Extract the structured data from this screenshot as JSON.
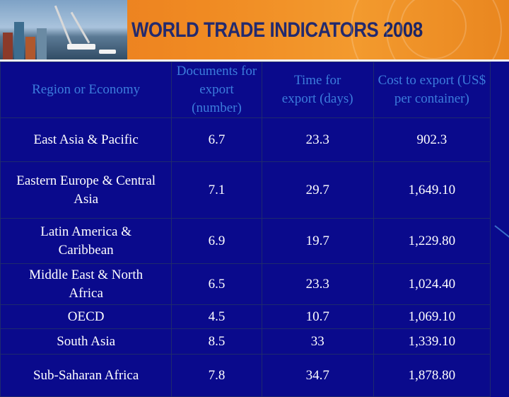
{
  "banner": {
    "title": "WORLD TRADE INDICATORS",
    "year": "2008"
  },
  "colors": {
    "background": "#0a0a8c",
    "banner": "#f08a22",
    "header_text": "#3c7ddc",
    "cell_text": "#ffffff"
  },
  "table": {
    "headers": [
      "Region or Economy",
      "Documents for export (number)",
      "Time for export (days)",
      "Cost to export (US$ per container)"
    ],
    "rows": [
      [
        "East Asia & Pacific",
        "6.7",
        "23.3",
        "902.3"
      ],
      [
        "Eastern Europe & Central Asia",
        "7.1",
        "29.7",
        "1,649.10"
      ],
      [
        "Latin America & Caribbean",
        "6.9",
        "19.7",
        "1,229.80"
      ],
      [
        "Middle East & North Africa",
        "6.5",
        "23.3",
        "1,024.40"
      ],
      [
        "OECD",
        "4.5",
        "10.7",
        "1,069.10"
      ],
      [
        "South Asia",
        "8.5",
        "33",
        "1,339.10"
      ],
      [
        "Sub-Saharan Africa",
        "7.8",
        "34.7",
        "1,878.80"
      ]
    ]
  }
}
